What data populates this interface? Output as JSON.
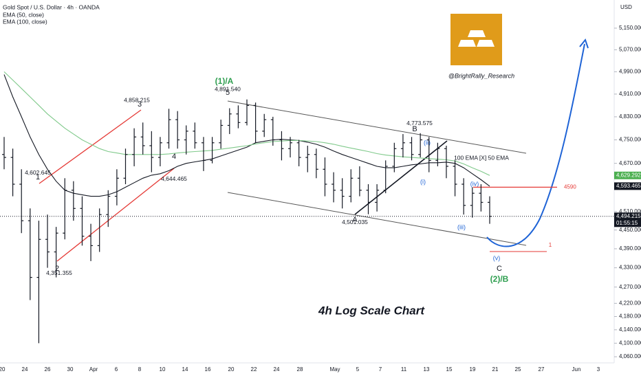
{
  "header": {
    "title": "Gold Spot / U.S. Dollar · 4h · OANDA",
    "indicators": [
      "EMA (50, close)",
      "EMA (100, close)"
    ]
  },
  "chart_data": {
    "type": "ohlc",
    "scale": "log",
    "currency": "USD",
    "ohlc": [
      [
        4700,
        4760,
        4650,
        4690
      ],
      [
        4690,
        4720,
        4560,
        4600
      ],
      [
        4600,
        4650,
        4440,
        4480
      ],
      [
        4480,
        4520,
        4230,
        4300
      ],
      [
        4300,
        4480,
        4100,
        4420
      ],
      [
        4420,
        4500,
        4330,
        4380
      ],
      [
        4380,
        4460,
        4300,
        4440
      ],
      [
        4440,
        4620,
        4420,
        4580
      ],
      [
        4580,
        4610,
        4480,
        4520
      ],
      [
        4520,
        4560,
        4400,
        4430
      ],
      [
        4430,
        4470,
        4351,
        4400
      ],
      [
        4400,
        4520,
        4380,
        4500
      ],
      [
        4500,
        4580,
        4460,
        4560
      ],
      [
        4560,
        4650,
        4530,
        4620
      ],
      [
        4620,
        4720,
        4600,
        4700
      ],
      [
        4700,
        4790,
        4660,
        4760
      ],
      [
        4760,
        4810,
        4700,
        4730
      ],
      [
        4730,
        4780,
        4640,
        4690
      ],
      [
        4690,
        4760,
        4660,
        4740
      ],
      [
        4740,
        4858,
        4720,
        4820
      ],
      [
        4820,
        4850,
        4720,
        4750
      ],
      [
        4750,
        4800,
        4700,
        4780
      ],
      [
        4780,
        4810,
        4720,
        4740
      ],
      [
        4740,
        4760,
        4644,
        4680
      ],
      [
        4680,
        4760,
        4670,
        4740
      ],
      [
        4740,
        4820,
        4720,
        4800
      ],
      [
        4800,
        4860,
        4770,
        4840
      ],
      [
        4840,
        4870,
        4790,
        4810
      ],
      [
        4810,
        4891,
        4800,
        4870
      ],
      [
        4870,
        4880,
        4740,
        4780
      ],
      [
        4780,
        4840,
        4760,
        4820
      ],
      [
        4820,
        4830,
        4730,
        4750
      ],
      [
        4750,
        4780,
        4680,
        4720
      ],
      [
        4720,
        4760,
        4690,
        4740
      ],
      [
        4740,
        4750,
        4660,
        4690
      ],
      [
        4690,
        4730,
        4640,
        4700
      ],
      [
        4700,
        4720,
        4620,
        4650
      ],
      [
        4650,
        4690,
        4560,
        4600
      ],
      [
        4600,
        4640,
        4540,
        4580
      ],
      [
        4580,
        4620,
        4520,
        4560
      ],
      [
        4560,
        4650,
        4540,
        4620
      ],
      [
        4620,
        4660,
        4560,
        4580
      ],
      [
        4580,
        4600,
        4501,
        4540
      ],
      [
        4540,
        4600,
        4510,
        4580
      ],
      [
        4580,
        4680,
        4570,
        4660
      ],
      [
        4660,
        4740,
        4640,
        4720
      ],
      [
        4720,
        4770,
        4690,
        4740
      ],
      [
        4740,
        4760,
        4680,
        4700
      ],
      [
        4700,
        4773,
        4690,
        4750
      ],
      [
        4750,
        4760,
        4640,
        4680
      ],
      [
        4680,
        4740,
        4660,
        4720
      ],
      [
        4720,
        4730,
        4620,
        4660
      ],
      [
        4660,
        4680,
        4560,
        4600
      ],
      [
        4600,
        4620,
        4500,
        4530
      ],
      [
        4530,
        4590,
        4490,
        4570
      ],
      [
        4570,
        4600,
        4510,
        4540
      ],
      [
        4540,
        4560,
        4470,
        4494.215
      ]
    ],
    "series": [
      {
        "name": "EMA (50, close)",
        "color": "#131722",
        "values": [
          4980,
          4900,
          4830,
          4760,
          4700,
          4650,
          4610,
          4580,
          4570,
          4565,
          4560,
          4560,
          4565,
          4575,
          4590,
          4605,
          4620,
          4630,
          4635,
          4645,
          4660,
          4670,
          4675,
          4680,
          4685,
          4695,
          4705,
          4715,
          4725,
          4740,
          4745,
          4750,
          4752,
          4750,
          4748,
          4742,
          4735,
          4725,
          4712,
          4700,
          4690,
          4680,
          4670,
          4660,
          4655,
          4655,
          4660,
          4665,
          4668,
          4672,
          4672,
          4674,
          4670,
          4655,
          4635,
          4615,
          4593.465
        ]
      },
      {
        "name": "EMA (100, close)",
        "color": "#7fc98a",
        "values": [
          4990,
          4960,
          4930,
          4900,
          4870,
          4840,
          4815,
          4790,
          4770,
          4750,
          4735,
          4720,
          4710,
          4705,
          4700,
          4700,
          4700,
          4700,
          4700,
          4702,
          4705,
          4708,
          4710,
          4712,
          4714,
          4718,
          4722,
          4726,
          4730,
          4736,
          4740,
          4744,
          4746,
          4748,
          4748,
          4746,
          4744,
          4740,
          4735,
          4728,
          4722,
          4716,
          4710,
          4703,
          4698,
          4695,
          4692,
          4690,
          4688,
          4686,
          4684,
          4682,
          4678,
          4668,
          4655,
          4643,
          4629.292
        ]
      }
    ],
    "ylim": [
      4042,
      5256
    ],
    "yticks": [
      {
        "value": 5150,
        "label": "5,150.000"
      },
      {
        "value": 5070,
        "label": "5,070.000"
      },
      {
        "value": 4990,
        "label": "4,990.000"
      },
      {
        "value": 4910,
        "label": "4,910.000"
      },
      {
        "value": 4830,
        "label": "4,830.000"
      },
      {
        "value": 4750,
        "label": "4,750.000"
      },
      {
        "value": 4670,
        "label": "4,670.000"
      },
      {
        "value": 4510,
        "label": "4,510.000"
      },
      {
        "value": 4450,
        "label": "4,450.000"
      },
      {
        "value": 4390,
        "label": "4,390.000"
      },
      {
        "value": 4330,
        "label": "4,330.000"
      },
      {
        "value": 4270,
        "label": "4,270.000"
      },
      {
        "value": 4220,
        "label": "4,220.000"
      },
      {
        "value": 4180,
        "label": "4,180.000"
      },
      {
        "value": 4140,
        "label": "4,140.000"
      },
      {
        "value": 4100,
        "label": "4,100.000"
      },
      {
        "value": 4060,
        "label": "4,060.000"
      }
    ],
    "x_labels": [
      "20",
      "24",
      "26",
      "30",
      "Apr",
      "6",
      "8",
      "10",
      "14",
      "16",
      "20",
      "22",
      "24",
      "28",
      "May",
      "5",
      "7",
      "11",
      "13",
      "15",
      "19",
      "21",
      "25",
      "27",
      "Jun",
      "3"
    ],
    "price_labels": [
      {
        "value": 4629.292,
        "label": "4,629.292",
        "color": "#4caf50"
      },
      {
        "value": 4593.465,
        "label": "4,593.465",
        "color": "#131722"
      },
      {
        "value": 4494.215,
        "label": "4,494.215",
        "color": "#131722",
        "countdown": "01:55:15"
      }
    ],
    "pivot_labels": [
      {
        "value": 4602.645,
        "label": "4,602.645"
      },
      {
        "value": 4351.355,
        "label": "4,351.355"
      },
      {
        "value": 4858.215,
        "label": "4,858.215"
      },
      {
        "value": 4644.465,
        "label": "4,644.465"
      },
      {
        "value": 4891.54,
        "label": "4,891.540"
      },
      {
        "value": 4501.035,
        "label": "4,501.035"
      },
      {
        "value": 4773.575,
        "label": "4,773.575"
      }
    ],
    "level": {
      "value": 4590,
      "label": "4590",
      "color": "#e53935"
    },
    "annotations": [
      "1",
      "2",
      "3",
      "4",
      "5",
      "(1)/A",
      "A",
      "B",
      "C",
      "(2)/B",
      "(i)",
      "(ii)",
      "(iii)",
      "(iv)",
      "(v)",
      "1",
      "100 EMA [X] 50 EMA",
      "@BrightRally_Research",
      "4h Log Scale Chart"
    ]
  }
}
